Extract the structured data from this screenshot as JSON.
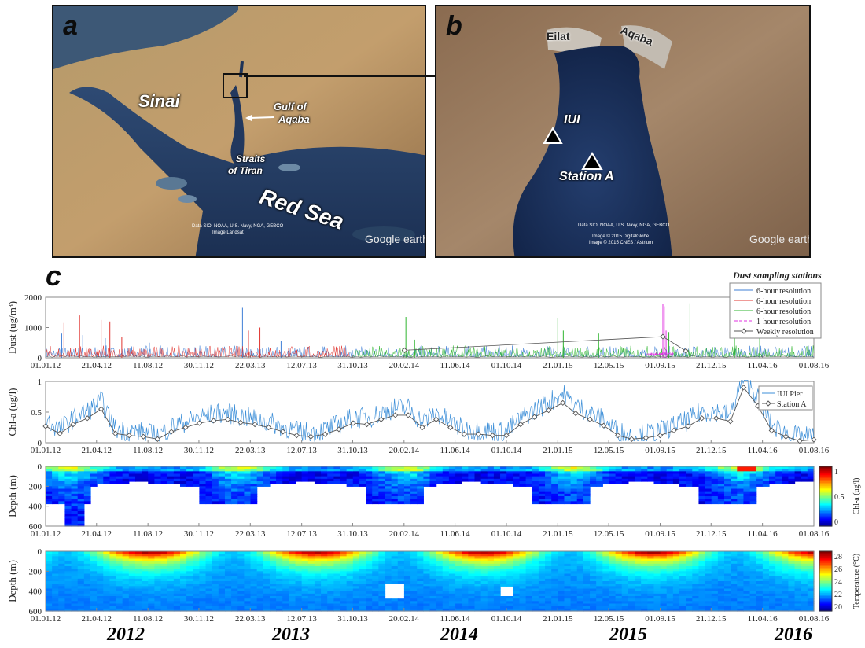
{
  "panel_a": {
    "letter": "a",
    "labels": {
      "sinai": "Sinai",
      "gulf_line1": "Gulf of",
      "gulf_line2": "Aqaba",
      "straits_line1": "Straits",
      "straits_line2": "of Tiran",
      "red_sea": "Red Sea"
    },
    "credit_line1": "Data SIO, NOAA, U.S. Navy, NGA, GEBCO",
    "credit_line2": "Image Landsat",
    "logo": "Google earth"
  },
  "panel_b": {
    "letter": "b",
    "labels": {
      "eilat": "Eilat",
      "aqaba": "Aqaba",
      "iui": "IUI",
      "station_a": "Station A"
    },
    "credit_line1": "Data SIO, NOAA, U.S. Navy, NGA, GEBCO",
    "credit_line2": "Image © 2015 DigitalGlobe",
    "credit_line3": "Image © 2015 CNES / Astrium",
    "logo": "Google earth"
  },
  "panel_c": {
    "letter": "c"
  },
  "years": [
    "2012",
    "2013",
    "2014",
    "2015",
    "2016"
  ],
  "colors": {
    "blue": "#3f7fd6",
    "red": "#e0342f",
    "green": "#2fb52f",
    "magenta": "#e030e0",
    "gray": "#555555",
    "chl_blue": "#3d8fd8",
    "frame": "#888888"
  },
  "chart_data": [
    {
      "type": "line",
      "ylabel": "Dust (ug/m³)",
      "ylim": [
        0,
        2000
      ],
      "yticks": [
        "0",
        "1000",
        "2000"
      ],
      "xticks": [
        "01.01.12",
        "21.04.12",
        "11.08.12",
        "30.11.12",
        "22.03.13",
        "12.07.13",
        "31.10.13",
        "20.02.14",
        "11.06.14",
        "01.10.14",
        "21.01.15",
        "12.05.15",
        "01.09.15",
        "21.12.15",
        "11.04.16",
        "01.08.16"
      ],
      "legend_title": "Dust sampling stations",
      "legend_position": "top-right",
      "series": [
        {
          "name": "6-hour resolution",
          "color": "blue",
          "x_range": [
            "01.01.12",
            "01.08.16"
          ],
          "peaks": [
            [
              "05.02.12",
              800
            ],
            [
              "22.03.12",
              750
            ],
            [
              "10.05.12",
              650
            ],
            [
              "14.08.12",
              500
            ],
            [
              "05.03.13",
              1650
            ],
            [
              "28.05.13",
              560
            ]
          ]
        },
        {
          "name": "6-hour resolution",
          "color": "red",
          "x_range": [
            "01.01.12",
            "25.10.13"
          ],
          "peaks": [
            [
              "10.02.12",
              1150
            ],
            [
              "15.03.12",
              1400
            ],
            [
              "01.05.12",
              1250
            ],
            [
              "20.05.12",
              1200
            ],
            [
              "15.06.12",
              700
            ],
            [
              "18.03.13",
              900
            ],
            [
              "12.04.13",
              1000
            ]
          ]
        },
        {
          "name": "6-hour resolution",
          "color": "green",
          "x_range": [
            "31.10.13",
            "01.08.16"
          ],
          "peaks": [
            [
              "24.02.14",
              1350
            ],
            [
              "15.03.14",
              600
            ],
            [
              "21.01.15",
              1300
            ],
            [
              "02.02.15",
              900
            ],
            [
              "20.04.15",
              800
            ],
            [
              "20.09.15",
              850
            ],
            [
              "05.11.15",
              1800
            ],
            [
              "10.02.16",
              1050
            ],
            [
              "05.04.16",
              1300
            ]
          ]
        },
        {
          "name": "1-hour resolution",
          "color": "magenta",
          "x_range": [
            "01.08.15",
            "30.09.15"
          ],
          "peaks": [
            [
              "07.09.15",
              1780
            ],
            [
              "10.09.15",
              1700
            ],
            [
              "14.09.15",
              900
            ]
          ]
        },
        {
          "name": "Weekly resolution",
          "color": "gray",
          "marker": "diamond",
          "points": [
            [
              "21.02.14",
              250
            ],
            [
              "07.09.15",
              700
            ],
            [
              "27.10.15",
              230
            ]
          ]
        }
      ]
    },
    {
      "type": "line",
      "ylabel": "Chl-a (ug/l)",
      "ylim": [
        0,
        1
      ],
      "yticks": [
        "0",
        "0.5",
        "1"
      ],
      "legend_position": "top-right",
      "series": [
        {
          "name": "IUI Pier",
          "color": "chl_blue"
        },
        {
          "name": "Station A",
          "color": "gray",
          "marker": "diamond",
          "points": [
            [
              "01.01.12",
              0.27
            ],
            [
              "01.02.12",
              0.15
            ],
            [
              "01.03.12",
              0.3
            ],
            [
              "01.04.12",
              0.4
            ],
            [
              "01.05.12",
              0.55
            ],
            [
              "01.06.12",
              0.15
            ],
            [
              "01.07.12",
              0.12
            ],
            [
              "01.08.12",
              0.1
            ],
            [
              "01.09.12",
              0.06
            ],
            [
              "01.10.12",
              0.18
            ],
            [
              "01.11.12",
              0.25
            ],
            [
              "01.12.12",
              0.32
            ],
            [
              "01.01.13",
              0.36
            ],
            [
              "01.02.13",
              0.38
            ],
            [
              "01.03.13",
              0.33
            ],
            [
              "01.04.13",
              0.3
            ],
            [
              "01.05.13",
              0.25
            ],
            [
              "01.06.13",
              0.18
            ],
            [
              "01.07.13",
              0.12
            ],
            [
              "01.08.13",
              0.1
            ],
            [
              "01.09.13",
              0.14
            ],
            [
              "01.10.13",
              0.22
            ],
            [
              "01.11.13",
              0.32
            ],
            [
              "01.12.13",
              0.3
            ],
            [
              "01.01.14",
              0.38
            ],
            [
              "01.02.14",
              0.45
            ],
            [
              "01.03.14",
              0.45
            ],
            [
              "01.04.14",
              0.25
            ],
            [
              "01.05.14",
              0.38
            ],
            [
              "01.06.14",
              0.25
            ],
            [
              "01.07.14",
              0.14
            ],
            [
              "01.08.14",
              0.14
            ],
            [
              "01.09.14",
              0.12
            ],
            [
              "01.10.14",
              0.12
            ],
            [
              "01.11.14",
              0.3
            ],
            [
              "01.12.14",
              0.42
            ],
            [
              "01.01.15",
              0.53
            ],
            [
              "01.02.15",
              0.65
            ],
            [
              "01.03.15",
              0.48
            ],
            [
              "01.04.15",
              0.38
            ],
            [
              "01.05.15",
              0.28
            ],
            [
              "01.06.15",
              0.12
            ],
            [
              "01.07.15",
              0.06
            ],
            [
              "01.08.15",
              0.08
            ],
            [
              "01.09.15",
              0.12
            ],
            [
              "01.10.15",
              0.2
            ],
            [
              "01.11.15",
              0.27
            ],
            [
              "01.12.15",
              0.4
            ],
            [
              "01.01.16",
              0.4
            ],
            [
              "01.02.16",
              0.35
            ],
            [
              "01.03.16",
              0.9
            ],
            [
              "01.04.16",
              0.6
            ],
            [
              "01.05.16",
              0.2
            ],
            [
              "01.06.16",
              0.1
            ],
            [
              "01.07.16",
              0.03
            ],
            [
              "01.08.16",
              0.05
            ]
          ]
        }
      ]
    },
    {
      "type": "heatmap",
      "ylabel": "Depth (m)",
      "ylim": [
        600,
        0
      ],
      "yticks": [
        "0",
        "200",
        "400",
        "600"
      ],
      "colorbar_label": "Chl-a (ug/l)",
      "colorbar_ticks": [
        "1",
        "0.5",
        "0"
      ]
    },
    {
      "type": "heatmap",
      "ylabel": "Depth (m)",
      "ylim": [
        600,
        0
      ],
      "yticks": [
        "0",
        "200",
        "400",
        "600"
      ],
      "colorbar_label": "Temperature (°C)",
      "colorbar_ticks": [
        "28",
        "26",
        "24",
        "22",
        "20"
      ]
    }
  ]
}
